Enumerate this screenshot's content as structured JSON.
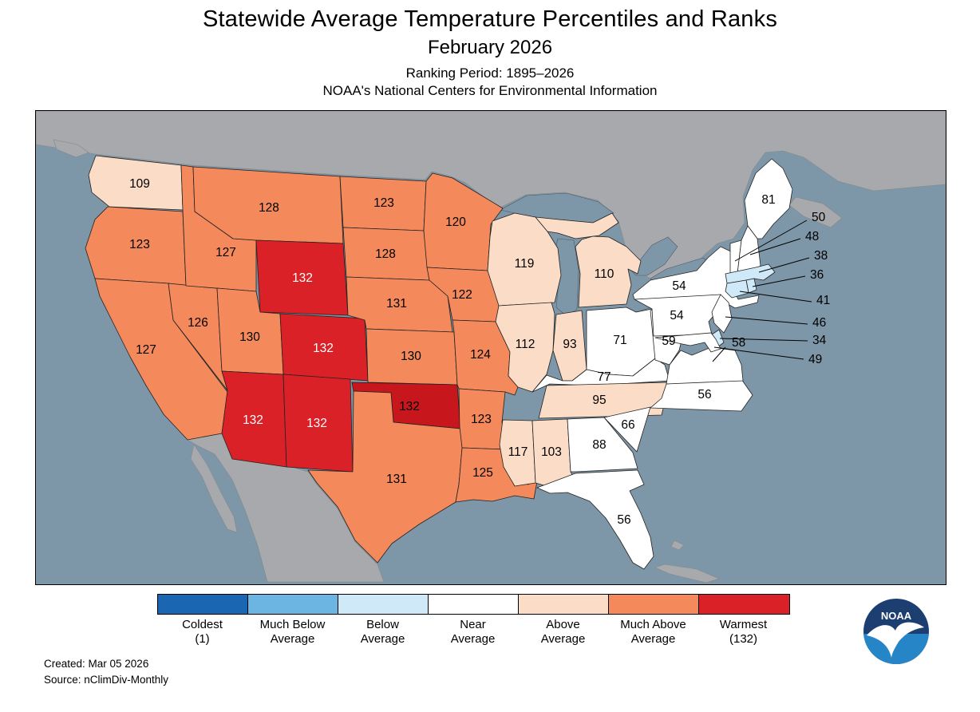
{
  "header": {
    "title": "Statewide Average Temperature Percentiles and Ranks",
    "subtitle": "February 2026",
    "ranking_period": "Ranking Period: 1895–2026",
    "org": "NOAA's National Centers for Environmental Information"
  },
  "footer": {
    "created": "Created: Mar 05 2026",
    "source": "Source: nClimDiv-Monthly"
  },
  "logo": {
    "label": "NOAA"
  },
  "legend": {
    "items": [
      {
        "line1": "Coldest",
        "line2": "(1)",
        "color": "#1A66B2"
      },
      {
        "line1": "Much Below",
        "line2": "Average",
        "color": "#6CB5E3"
      },
      {
        "line1": "Below",
        "line2": "Average",
        "color": "#CFE9F8"
      },
      {
        "line1": "Near",
        "line2": "Average",
        "color": "#FFFFFF"
      },
      {
        "line1": "Above",
        "line2": "Average",
        "color": "#FBDCC7"
      },
      {
        "line1": "Much Above",
        "line2": "Average",
        "color": "#F4895B"
      },
      {
        "line1": "Warmest",
        "line2": "(132)",
        "color": "#DA2127"
      }
    ]
  },
  "map": {
    "ocean_color": "#7E97A8",
    "foreign_land_color": "#A7A9AC",
    "state_border_color": "#222222",
    "category_colors": {
      "coldest": "#1A66B2",
      "much_below": "#6CB5E3",
      "below": "#CFE9F8",
      "near": "#FFFFFF",
      "above": "#FBDCC7",
      "much_above": "#F4895B",
      "warmest": "#DA2127",
      "warmest_dark": "#C8161D"
    },
    "states": [
      {
        "abbr": "WA",
        "name": "Washington",
        "rank": 109,
        "category": "above"
      },
      {
        "abbr": "OR",
        "name": "Oregon",
        "rank": 123,
        "category": "much_above"
      },
      {
        "abbr": "CA",
        "name": "California",
        "rank": 127,
        "category": "much_above"
      },
      {
        "abbr": "NV",
        "name": "Nevada",
        "rank": 126,
        "category": "much_above"
      },
      {
        "abbr": "ID",
        "name": "Idaho",
        "rank": 127,
        "category": "much_above"
      },
      {
        "abbr": "MT",
        "name": "Montana",
        "rank": 128,
        "category": "much_above"
      },
      {
        "abbr": "WY",
        "name": "Wyoming",
        "rank": 132,
        "category": "warmest",
        "label_color": "#FFFFFF"
      },
      {
        "abbr": "UT",
        "name": "Utah",
        "rank": 130,
        "category": "much_above"
      },
      {
        "abbr": "CO",
        "name": "Colorado",
        "rank": 132,
        "category": "warmest",
        "label_color": "#FFFFFF"
      },
      {
        "abbr": "AZ",
        "name": "Arizona",
        "rank": 132,
        "category": "warmest",
        "label_color": "#FFFFFF"
      },
      {
        "abbr": "NM",
        "name": "New Mexico",
        "rank": 132,
        "category": "warmest",
        "label_color": "#FFFFFF"
      },
      {
        "abbr": "ND",
        "name": "North Dakota",
        "rank": 123,
        "category": "much_above"
      },
      {
        "abbr": "SD",
        "name": "South Dakota",
        "rank": 128,
        "category": "much_above"
      },
      {
        "abbr": "NE",
        "name": "Nebraska",
        "rank": 131,
        "category": "much_above"
      },
      {
        "abbr": "KS",
        "name": "Kansas",
        "rank": 130,
        "category": "much_above"
      },
      {
        "abbr": "OK",
        "name": "Oklahoma",
        "rank": 132,
        "category": "warmest",
        "shade": "dark"
      },
      {
        "abbr": "TX",
        "name": "Texas",
        "rank": 131,
        "category": "much_above"
      },
      {
        "abbr": "MN",
        "name": "Minnesota",
        "rank": 120,
        "category": "much_above"
      },
      {
        "abbr": "IA",
        "name": "Iowa",
        "rank": 122,
        "category": "much_above"
      },
      {
        "abbr": "MO",
        "name": "Missouri",
        "rank": 124,
        "category": "much_above"
      },
      {
        "abbr": "AR",
        "name": "Arkansas",
        "rank": 123,
        "category": "much_above"
      },
      {
        "abbr": "LA",
        "name": "Louisiana",
        "rank": 125,
        "category": "much_above"
      },
      {
        "abbr": "WI",
        "name": "Wisconsin",
        "rank": 119,
        "category": "above"
      },
      {
        "abbr": "IL",
        "name": "Illinois",
        "rank": 112,
        "category": "above"
      },
      {
        "abbr": "MI",
        "name": "Michigan",
        "rank": 110,
        "category": "above"
      },
      {
        "abbr": "IN",
        "name": "Indiana",
        "rank": 93,
        "category": "above"
      },
      {
        "abbr": "OH",
        "name": "Ohio",
        "rank": 71,
        "category": "near"
      },
      {
        "abbr": "KY",
        "name": "Kentucky",
        "rank": 77,
        "category": "near"
      },
      {
        "abbr": "TN",
        "name": "Tennessee",
        "rank": 95,
        "category": "above"
      },
      {
        "abbr": "MS",
        "name": "Mississippi",
        "rank": 117,
        "category": "above"
      },
      {
        "abbr": "AL",
        "name": "Alabama",
        "rank": 103,
        "category": "above"
      },
      {
        "abbr": "GA",
        "name": "Georgia",
        "rank": 88,
        "category": "near"
      },
      {
        "abbr": "FL",
        "name": "Florida",
        "rank": 56,
        "category": "near"
      },
      {
        "abbr": "SC",
        "name": "South Carolina",
        "rank": 66,
        "category": "near"
      },
      {
        "abbr": "NC",
        "name": "North Carolina",
        "rank": 56,
        "category": "near"
      },
      {
        "abbr": "VA",
        "name": "Virginia",
        "rank": 58,
        "category": "near",
        "leader_label": true
      },
      {
        "abbr": "WV",
        "name": "West Virginia",
        "rank": 59,
        "category": "near"
      },
      {
        "abbr": "PA",
        "name": "Pennsylvania",
        "rank": 54,
        "category": "near"
      },
      {
        "abbr": "NY",
        "name": "New York",
        "rank": 54,
        "category": "near"
      },
      {
        "abbr": "ME",
        "name": "Maine",
        "rank": 81,
        "category": "near"
      },
      {
        "abbr": "VT",
        "name": "Vermont",
        "rank": 50,
        "category": "near",
        "leader_label": true
      },
      {
        "abbr": "NH",
        "name": "New Hampshire",
        "rank": 48,
        "category": "near",
        "leader_label": true
      },
      {
        "abbr": "MA",
        "name": "Massachusetts",
        "rank": 38,
        "category": "below",
        "leader_label": true
      },
      {
        "abbr": "RI",
        "name": "Rhode Island",
        "rank": 36,
        "category": "below",
        "leader_label": true
      },
      {
        "abbr": "CT",
        "name": "Connecticut",
        "rank": 41,
        "category": "below",
        "leader_label": true
      },
      {
        "abbr": "NJ",
        "name": "New Jersey",
        "rank": 46,
        "category": "near",
        "leader_label": true
      },
      {
        "abbr": "DE",
        "name": "Delaware",
        "rank": 34,
        "category": "below",
        "leader_label": true
      },
      {
        "abbr": "MD",
        "name": "Maryland",
        "rank": 49,
        "category": "near",
        "leader_label": true
      }
    ]
  }
}
